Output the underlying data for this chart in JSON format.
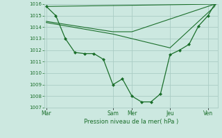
{
  "bg_color": "#cce8e0",
  "grid_color": "#aaccc4",
  "line_color": "#1a6e2a",
  "marker_color": "#1a6e2a",
  "xlabel": "Pression niveau de la mer( hPa )",
  "ylim": [
    1007,
    1016
  ],
  "yticks": [
    1007,
    1008,
    1009,
    1010,
    1011,
    1012,
    1013,
    1014,
    1015,
    1016
  ],
  "xtick_labels": [
    "Mar",
    "Sam",
    "Mer",
    "Jeu",
    "Ven"
  ],
  "xtick_positions": [
    0.0,
    3.5,
    4.5,
    6.5,
    8.5
  ],
  "vlines": [
    0.0,
    3.5,
    4.5,
    6.5,
    8.5
  ],
  "xlim": [
    -0.1,
    9.0
  ],
  "series1": {
    "x": [
      0.0,
      0.5,
      1.0,
      1.5,
      2.0,
      2.5,
      3.0,
      3.5,
      4.0,
      4.5,
      5.0,
      5.5,
      6.0,
      6.5,
      7.0,
      7.5,
      8.0,
      8.5,
      8.85
    ],
    "y": [
      1015.8,
      1015.0,
      1013.0,
      1011.8,
      1011.7,
      1011.7,
      1011.2,
      1009.0,
      1009.5,
      1008.0,
      1007.5,
      1007.5,
      1008.2,
      1011.6,
      1012.0,
      1012.5,
      1014.1,
      1015.0,
      1016.0
    ]
  },
  "series2": {
    "x": [
      0.0,
      8.85
    ],
    "y": [
      1015.8,
      1016.0
    ]
  },
  "series3": {
    "x": [
      0.0,
      3.5,
      4.5,
      8.85
    ],
    "y": [
      1014.5,
      1013.6,
      1013.6,
      1016.0
    ]
  },
  "series4": {
    "x": [
      0.0,
      3.5,
      4.5,
      6.5,
      8.85
    ],
    "y": [
      1014.4,
      1013.4,
      1013.0,
      1012.2,
      1015.8
    ]
  }
}
